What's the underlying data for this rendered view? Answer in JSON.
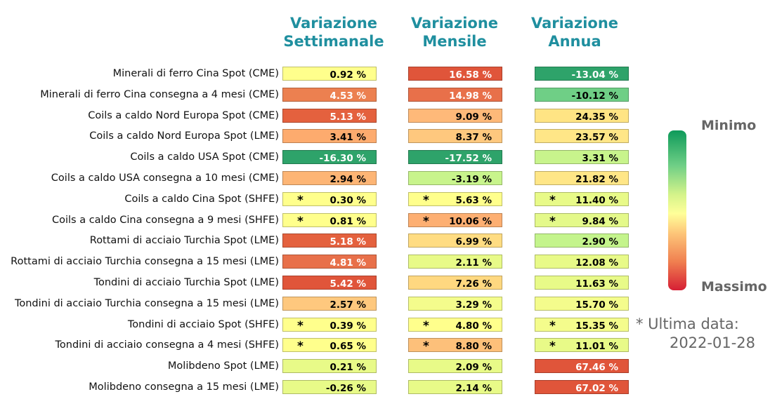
{
  "chart_data": {
    "type": "table",
    "columns": [
      "Variazione\nSettimanale",
      "Variazione\nMensile",
      "Variazione\nAnnua"
    ],
    "rows": [
      {
        "label": "Minerali di ferro Cina Spot (CME)",
        "values": [
          "0.92 %",
          "16.58 %",
          "-13.04 %"
        ],
        "colors": [
          "#ffff8c",
          "#e0553a",
          "#2ea36a"
        ],
        "textColors": [
          "#000",
          "#fff",
          "#fff"
        ],
        "stars": [
          false,
          false,
          false
        ]
      },
      {
        "label": "Minerali di ferro Cina consegna a 4 mesi (CME)",
        "values": [
          "4.53 %",
          "14.98 %",
          "-10.12 %"
        ],
        "colors": [
          "#ec8050",
          "#e8704a",
          "#6fcf86"
        ],
        "textColors": [
          "#fff",
          "#fff",
          "#000"
        ],
        "stars": [
          false,
          false,
          false
        ]
      },
      {
        "label": "Coils a caldo Nord Europa Spot (CME)",
        "values": [
          "5.13 %",
          "9.09 %",
          "24.35 %"
        ],
        "colors": [
          "#e4613e",
          "#feb979",
          "#ffe484"
        ],
        "textColors": [
          "#fff",
          "#000",
          "#000"
        ],
        "stars": [
          false,
          false,
          false
        ]
      },
      {
        "label": "Coils a caldo Nord Europa Spot (LME)",
        "values": [
          "3.41 %",
          "8.37 %",
          "23.57 %"
        ],
        "colors": [
          "#fdab6e",
          "#fec87e",
          "#ffe687"
        ],
        "textColors": [
          "#000",
          "#000",
          "#000"
        ],
        "stars": [
          false,
          false,
          false
        ]
      },
      {
        "label": "Coils a caldo USA Spot (CME)",
        "values": [
          "-16.30 %",
          "-17.52 %",
          "3.31 %"
        ],
        "colors": [
          "#2ea36a",
          "#2ea36a",
          "#c8f48c"
        ],
        "textColors": [
          "#fff",
          "#fff",
          "#000"
        ],
        "stars": [
          false,
          false,
          false
        ]
      },
      {
        "label": "Coils a caldo USA consegna a 10 mesi (CME)",
        "values": [
          "2.94 %",
          "-3.19 %",
          "21.82 %"
        ],
        "colors": [
          "#fdb575",
          "#c8f48c",
          "#ffe687"
        ],
        "textColors": [
          "#000",
          "#000",
          "#000"
        ],
        "stars": [
          false,
          false,
          false
        ]
      },
      {
        "label": "Coils a caldo Cina Spot (SHFE)",
        "values": [
          "0.30 %",
          "5.63 %",
          "11.40 %"
        ],
        "colors": [
          "#ffff8c",
          "#ffff8c",
          "#e8fa88"
        ],
        "textColors": [
          "#000",
          "#000",
          "#000"
        ],
        "stars": [
          true,
          true,
          true
        ]
      },
      {
        "label": "Coils a caldo Cina consegna a 9 mesi (SHFE)",
        "values": [
          "0.81 %",
          "10.06 %",
          "9.84 %"
        ],
        "colors": [
          "#ffff8c",
          "#fdaf72",
          "#e4f98a"
        ],
        "textColors": [
          "#000",
          "#000",
          "#000"
        ],
        "stars": [
          true,
          true,
          true
        ]
      },
      {
        "label": "Rottami di acciaio Turchia Spot (LME)",
        "values": [
          "5.18 %",
          "6.99 %",
          "2.90 %"
        ],
        "colors": [
          "#e4613e",
          "#ffdc82",
          "#c4f48c"
        ],
        "textColors": [
          "#fff",
          "#000",
          "#000"
        ],
        "stars": [
          false,
          false,
          false
        ]
      },
      {
        "label": "Rottami di acciaio Turchia consegna a 15 mesi (LME)",
        "values": [
          "4.81 %",
          "2.11 %",
          "12.08 %"
        ],
        "colors": [
          "#e8704a",
          "#e8fa88",
          "#e8fa88"
        ],
        "textColors": [
          "#fff",
          "#000",
          "#000"
        ],
        "stars": [
          false,
          false,
          false
        ]
      },
      {
        "label": "Tondini di acciaio Turchia Spot (LME)",
        "values": [
          "5.42 %",
          "7.26 %",
          "11.63 %"
        ],
        "colors": [
          "#e0553a",
          "#ffd880",
          "#e8fa88"
        ],
        "textColors": [
          "#fff",
          "#000",
          "#000"
        ],
        "stars": [
          false,
          false,
          false
        ]
      },
      {
        "label": "Tondini di acciaio Turchia consegna a 15 mesi (LME)",
        "values": [
          "2.57 %",
          "3.29 %",
          "15.70 %"
        ],
        "colors": [
          "#fec87e",
          "#f4fc8c",
          "#f4fc8c"
        ],
        "textColors": [
          "#000",
          "#000",
          "#000"
        ],
        "stars": [
          false,
          false,
          false
        ]
      },
      {
        "label": "Tondini di acciaio Spot (SHFE)",
        "values": [
          "0.39 %",
          "4.80 %",
          "15.35 %"
        ],
        "colors": [
          "#ffff8c",
          "#ffff8c",
          "#f4fc8c"
        ],
        "textColors": [
          "#000",
          "#000",
          "#000"
        ],
        "stars": [
          true,
          true,
          true
        ]
      },
      {
        "label": "Tondini di acciaio consegna a 4 mesi (SHFE)",
        "values": [
          "0.65 %",
          "8.80 %",
          "11.01 %"
        ],
        "colors": [
          "#ffff8c",
          "#fdc07a",
          "#e8fa88"
        ],
        "textColors": [
          "#000",
          "#000",
          "#000"
        ],
        "stars": [
          true,
          true,
          true
        ]
      },
      {
        "label": "Molibdeno Spot (LME)",
        "values": [
          "0.21 %",
          "2.09 %",
          "67.46 %"
        ],
        "colors": [
          "#e8fa88",
          "#e8fa88",
          "#e0553a"
        ],
        "textColors": [
          "#000",
          "#000",
          "#fff"
        ],
        "stars": [
          false,
          false,
          false
        ]
      },
      {
        "label": "Molibdeno consegna a 15 mesi (LME)",
        "values": [
          "-0.26 %",
          "2.14 %",
          "67.02 %"
        ],
        "colors": [
          "#e8fa88",
          "#e8fa88",
          "#e0553a"
        ],
        "textColors": [
          "#000",
          "#000",
          "#fff"
        ],
        "stars": [
          false,
          false,
          false
        ]
      }
    ],
    "legend": {
      "min_label": "Minimo",
      "max_label": "Massimo"
    },
    "star_symbol": "*",
    "note": "* Ultima data:",
    "note_date": "2022-01-28"
  }
}
